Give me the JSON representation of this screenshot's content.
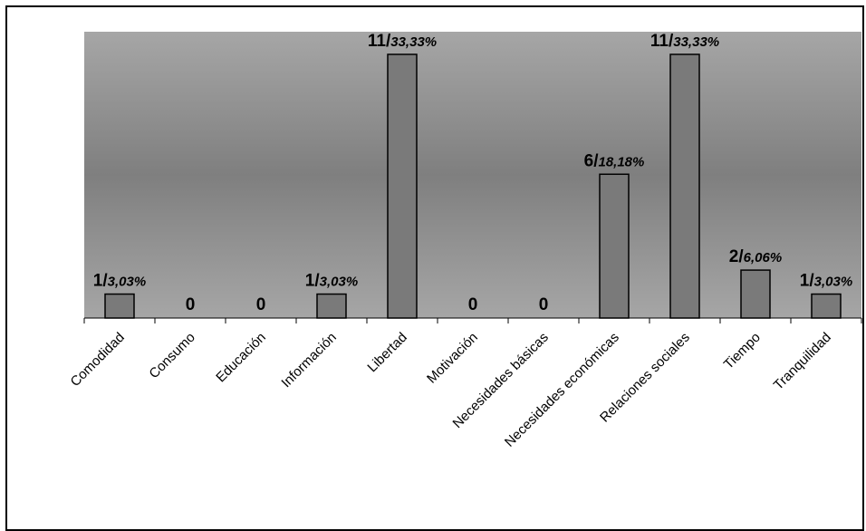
{
  "chart_data": {
    "type": "bar",
    "title": "",
    "xlabel": "",
    "ylabel": "",
    "categories": [
      "Comodidad",
      "Consumo",
      "Educación",
      "Información",
      "Libertad",
      "Motivación",
      "Necesidades básicas",
      "Necesidades económicas",
      "Relaciones sociales",
      "Tiempo",
      "Tranquilidad"
    ],
    "values": [
      1,
      0,
      0,
      1,
      11,
      0,
      0,
      6,
      11,
      2,
      1
    ],
    "data_labels": [
      {
        "count": "1/",
        "pct": "3,03%"
      },
      {
        "count": "0",
        "pct": ""
      },
      {
        "count": "0",
        "pct": ""
      },
      {
        "count": "1/",
        "pct": "3,03%"
      },
      {
        "count": "11/",
        "pct": "33,33%"
      },
      {
        "count": "0",
        "pct": ""
      },
      {
        "count": "0",
        "pct": ""
      },
      {
        "count": "6/",
        "pct": "18,18%"
      },
      {
        "count": "11/",
        "pct": "33,33%"
      },
      {
        "count": "2/",
        "pct": "6,06%"
      },
      {
        "count": "1/",
        "pct": "3,03%"
      }
    ],
    "ylim": [
      0,
      11
    ],
    "grid": false,
    "legend": "none",
    "colors": {
      "bar_fill": "#7a7a7a",
      "bar_stroke": "#000000",
      "plot_edge": "#a6a6a6",
      "plot_center": "#7f7f7f"
    }
  }
}
